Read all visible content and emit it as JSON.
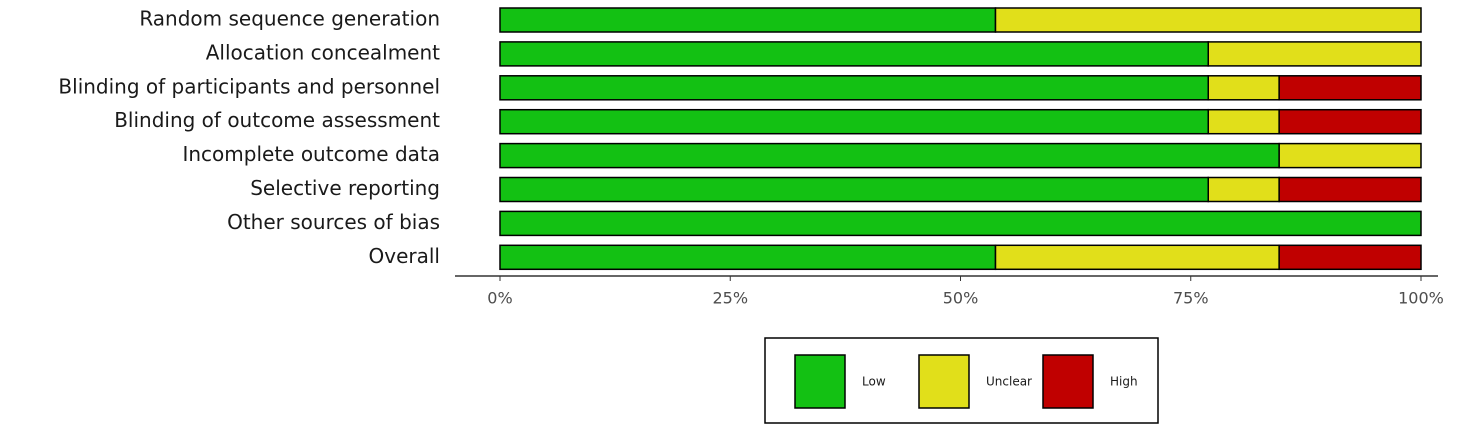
{
  "chart_data": {
    "type": "stacked-bar",
    "orientation": "horizontal",
    "categories": [
      "Random sequence generation",
      "Allocation concealment",
      "Blinding of participants and personnel",
      "Blinding of outcome assessment",
      "Incomplete outcome data",
      "Selective reporting",
      "Other sources of bias",
      "Overall"
    ],
    "series": [
      {
        "name": "Low",
        "color": "#13c113",
        "values": [
          53.8,
          76.9,
          76.9,
          76.9,
          84.6,
          76.9,
          100,
          53.8
        ]
      },
      {
        "name": "Unclear",
        "color": "#e1df1a",
        "values": [
          46.2,
          23.1,
          7.7,
          7.7,
          15.4,
          7.7,
          0,
          30.8
        ]
      },
      {
        "name": "High",
        "color": "#c00000",
        "values": [
          0,
          0,
          15.4,
          15.4,
          0,
          15.4,
          0,
          15.4
        ]
      }
    ],
    "xlim": [
      0,
      100
    ],
    "xticks": [
      {
        "value": 0,
        "label": "0%"
      },
      {
        "value": 25,
        "label": "25%"
      },
      {
        "value": 50,
        "label": "50%"
      },
      {
        "value": 75,
        "label": "75%"
      },
      {
        "value": 100,
        "label": "100%"
      }
    ],
    "legend": "bottom"
  }
}
